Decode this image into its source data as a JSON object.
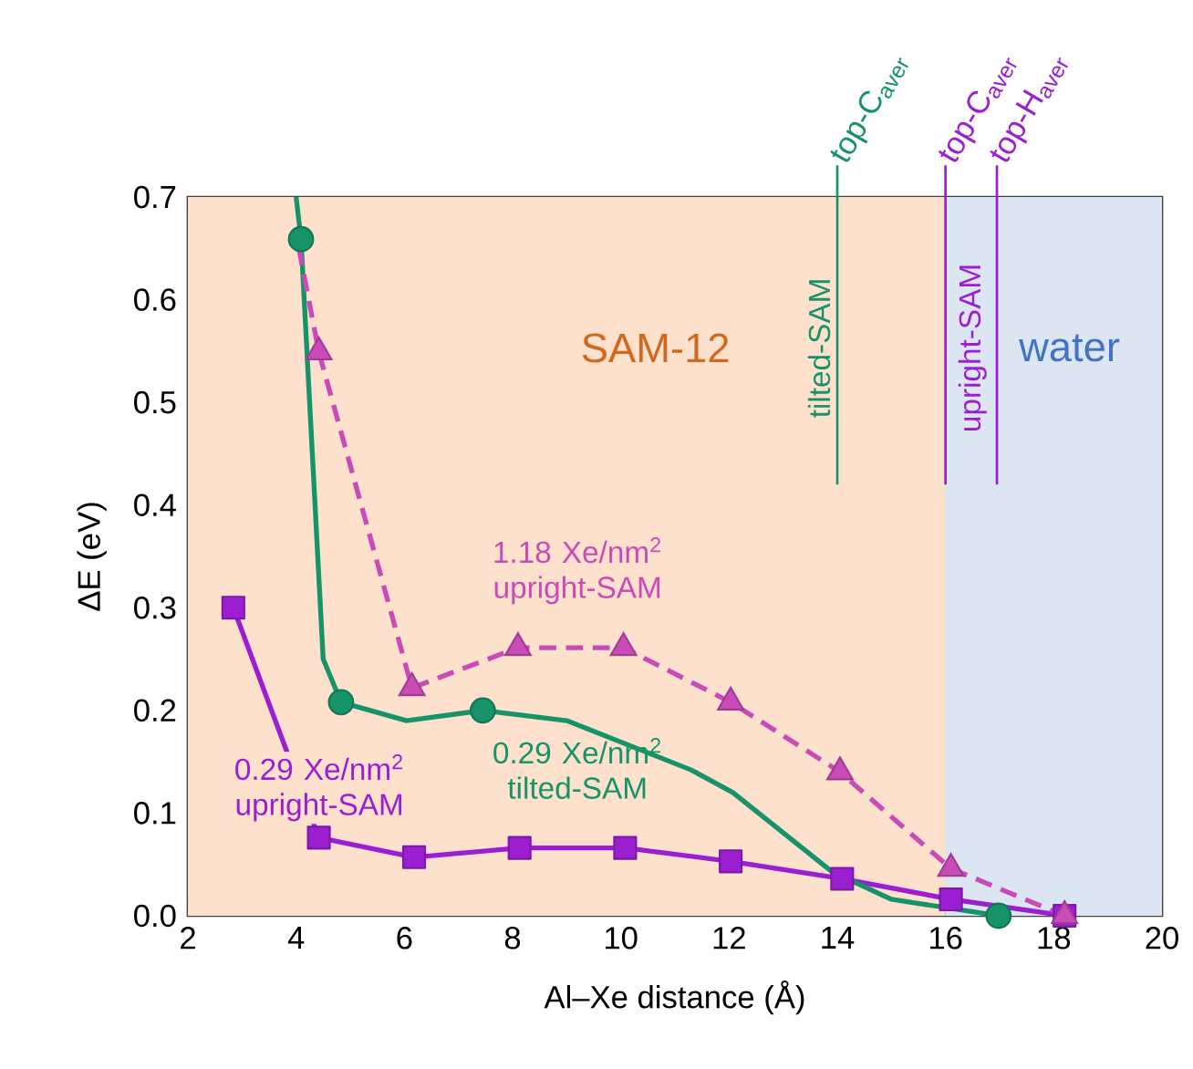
{
  "chart_data": {
    "type": "line",
    "xlabel": "Al–Xe distance (Å)",
    "ylabel": "ΔE (eV)",
    "xlim": [
      2,
      20
    ],
    "ylim": [
      0,
      0.7
    ],
    "xticks": [
      2,
      4,
      6,
      8,
      10,
      12,
      14,
      16,
      18,
      20
    ],
    "yticks": [
      {
        "value": 0,
        "label": "0.0"
      },
      0.1,
      0.2,
      0.3,
      0.4,
      0.5,
      0.6,
      0.7
    ],
    "grid": true,
    "series": [
      {
        "name": "0.29 Xe/nm$^{2}$ upright-SAM",
        "color": "#9b1fd0",
        "marker": "square",
        "line_style": "solid",
        "x": [
          2.84,
          4.42,
          6.18,
          8.13,
          10.08,
          12.03,
          14.09,
          16.1,
          18.2
        ],
        "values": [
          0.3,
          0.076,
          0.057,
          0.066,
          0.066,
          0.053,
          0.036,
          0.016,
          0.0
        ]
      },
      {
        "name": "0.29 Xe/nm$^{2}$ tilted-SAM",
        "color": "#17936a",
        "marker": "none",
        "line_style": "solid",
        "x": [
          4.0,
          4.09,
          4.5,
          4.83,
          6.04,
          7.45,
          9.0,
          11.3,
          12.07,
          13.9,
          15.0,
          16.98
        ],
        "values": [
          0.7,
          0.659,
          0.25,
          0.208,
          0.19,
          0.2,
          0.19,
          0.142,
          0.12,
          0.043,
          0.016,
          0.0
        ]
      },
      {
        "type": "scatter",
        "color": "#17936a",
        "marker": "circle",
        "x": [
          4.09,
          4.83,
          7.45,
          16.98
        ],
        "values": [
          0.659,
          0.208,
          0.2,
          0.0
        ]
      },
      {
        "name": "1.18 Xe/nm$^{2}$ upright-SAM",
        "color": "#c94bb8",
        "marker": "none",
        "line_style": "dashed",
        "x": [
          4.05,
          4.42,
          6.14,
          8.1,
          10.05,
          12.03,
          14.05,
          16.1,
          18.2
        ],
        "values": [
          0.65,
          0.549,
          0.222,
          0.261,
          0.261,
          0.208,
          0.14,
          0.046,
          0.0
        ]
      },
      {
        "type": "scatter",
        "color": "#c94bb8",
        "marker": "triangle",
        "x": [
          4.42,
          6.14,
          8.1,
          10.05,
          12.03,
          14.05,
          16.1,
          18.2
        ],
        "values": [
          0.549,
          0.222,
          0.261,
          0.261,
          0.208,
          0.14,
          0.046,
          0.0
        ]
      }
    ],
    "bands": [
      {
        "axis": "x",
        "from": 2,
        "to": 16,
        "label": "SAM-12",
        "color": "#fde1cd"
      },
      {
        "axis": "x",
        "from": 16,
        "to": 20,
        "label": "water",
        "color": "#dce6f3"
      }
    ],
    "ref_lines": [
      {
        "axis": "x",
        "value": 14,
        "label": "top-C$_{aver}$",
        "color": "#17936a"
      },
      {
        "axis": "x",
        "value": 16,
        "label": "top-C$_{aver}$",
        "color": "#9b1fd0"
      },
      {
        "axis": "x",
        "value": 16.95,
        "label": "top-H$_{aver}$",
        "color": "#9b1fd0"
      }
    ],
    "annotations": [
      "tilted-SAM",
      "upright-SAM"
    ]
  }
}
